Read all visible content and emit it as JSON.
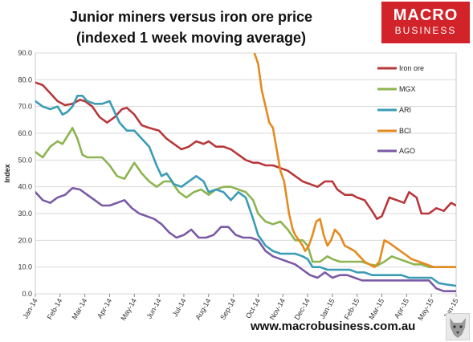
{
  "header": {
    "title_line1": "Junior miners versus iron ore price",
    "title_line2": "(indexed 1 week moving average)"
  },
  "branding": {
    "logo_line1": "MACRO",
    "logo_line2": "BUSINESS",
    "logo_color": "#d2232a",
    "url": "www.macrobusiness.com.au"
  },
  "chart_data": {
    "type": "line",
    "title": "Junior miners versus iron ore price (indexed 1 week moving average)",
    "ylabel": "Index",
    "xlabel": "",
    "ylim": [
      0,
      90
    ],
    "yticks": [
      "0.0",
      "10.0",
      "20.0",
      "30.0",
      "40.0",
      "50.0",
      "60.0",
      "70.0",
      "80.0",
      "90.0"
    ],
    "x_labels": [
      "Jan-14",
      "Feb-14",
      "Mar-14",
      "Apr-14",
      "May-14",
      "Jun-14",
      "Jul-14",
      "Aug-14",
      "Sep-14",
      "Oct-14",
      "Nov-14",
      "Dec-14",
      "Jan-15",
      "Feb-15",
      "Mar-15",
      "Apr-15",
      "May-15",
      "Jun-15"
    ],
    "xlim": [
      0,
      17
    ],
    "grid": "horizontal",
    "legend_position": "right",
    "series": [
      {
        "name": "Iron ore",
        "color": "#b8373a",
        "points": [
          [
            0,
            79
          ],
          [
            0.3,
            78
          ],
          [
            0.6,
            75
          ],
          [
            0.9,
            72
          ],
          [
            1.2,
            70.5
          ],
          [
            1.5,
            71
          ],
          [
            1.8,
            72.5
          ],
          [
            2,
            72
          ],
          [
            2.3,
            70
          ],
          [
            2.6,
            66
          ],
          [
            2.9,
            64
          ],
          [
            3.2,
            66
          ],
          [
            3.5,
            69
          ],
          [
            3.7,
            69.5
          ],
          [
            4,
            67
          ],
          [
            4.3,
            63
          ],
          [
            4.6,
            62
          ],
          [
            5,
            61
          ],
          [
            5.3,
            58
          ],
          [
            5.6,
            56
          ],
          [
            5.9,
            54
          ],
          [
            6.2,
            55
          ],
          [
            6.5,
            57
          ],
          [
            6.8,
            56
          ],
          [
            7,
            57
          ],
          [
            7.3,
            55
          ],
          [
            7.6,
            55
          ],
          [
            7.9,
            54
          ],
          [
            8.2,
            52
          ],
          [
            8.5,
            50
          ],
          [
            8.8,
            49
          ],
          [
            9,
            49
          ],
          [
            9.3,
            48
          ],
          [
            9.6,
            48
          ],
          [
            9.9,
            47
          ],
          [
            10.2,
            46
          ],
          [
            10.5,
            44
          ],
          [
            10.8,
            42
          ],
          [
            11.1,
            41
          ],
          [
            11.4,
            40
          ],
          [
            11.7,
            42
          ],
          [
            12,
            42
          ],
          [
            12.2,
            39
          ],
          [
            12.5,
            37
          ],
          [
            12.8,
            37
          ],
          [
            13,
            36
          ],
          [
            13.3,
            35
          ],
          [
            13.6,
            31
          ],
          [
            13.8,
            28
          ],
          [
            14,
            29
          ],
          [
            14.3,
            36
          ],
          [
            14.6,
            35
          ],
          [
            14.9,
            34
          ],
          [
            15.1,
            38
          ],
          [
            15.4,
            36
          ],
          [
            15.6,
            30
          ],
          [
            15.9,
            30
          ],
          [
            16.2,
            32
          ],
          [
            16.5,
            31
          ],
          [
            16.8,
            34
          ],
          [
            17,
            33
          ]
        ]
      },
      {
        "name": "MGX",
        "color": "#8cb450",
        "points": [
          [
            0,
            53
          ],
          [
            0.3,
            51
          ],
          [
            0.6,
            55
          ],
          [
            0.9,
            57
          ],
          [
            1.1,
            56
          ],
          [
            1.3,
            59
          ],
          [
            1.5,
            62
          ],
          [
            1.7,
            58
          ],
          [
            1.9,
            52
          ],
          [
            2.1,
            51
          ],
          [
            2.4,
            51
          ],
          [
            2.7,
            51
          ],
          [
            3,
            48
          ],
          [
            3.3,
            44
          ],
          [
            3.6,
            43
          ],
          [
            3.8,
            46
          ],
          [
            4,
            49
          ],
          [
            4.3,
            45
          ],
          [
            4.6,
            42
          ],
          [
            4.9,
            40
          ],
          [
            5.2,
            42
          ],
          [
            5.5,
            42
          ],
          [
            5.8,
            38
          ],
          [
            6.1,
            36
          ],
          [
            6.4,
            38
          ],
          [
            6.7,
            39
          ],
          [
            7,
            37
          ],
          [
            7.3,
            39
          ],
          [
            7.6,
            40
          ],
          [
            7.9,
            40
          ],
          [
            8.2,
            39
          ],
          [
            8.5,
            38
          ],
          [
            8.8,
            35
          ],
          [
            9,
            30
          ],
          [
            9.3,
            27
          ],
          [
            9.6,
            26
          ],
          [
            9.9,
            27
          ],
          [
            10.2,
            24
          ],
          [
            10.5,
            20
          ],
          [
            10.8,
            20
          ],
          [
            11,
            18
          ],
          [
            11.2,
            12
          ],
          [
            11.5,
            12
          ],
          [
            11.8,
            14
          ],
          [
            12,
            13
          ],
          [
            12.3,
            12
          ],
          [
            12.6,
            12
          ],
          [
            12.9,
            12
          ],
          [
            13.2,
            12
          ],
          [
            13.5,
            11
          ],
          [
            13.8,
            10.5
          ],
          [
            14.1,
            12
          ],
          [
            14.4,
            14
          ],
          [
            14.7,
            13
          ],
          [
            15,
            12
          ],
          [
            15.3,
            11
          ],
          [
            15.6,
            11
          ],
          [
            15.9,
            10
          ],
          [
            16.2,
            10
          ],
          [
            16.5,
            10
          ],
          [
            17,
            10
          ]
        ]
      },
      {
        "name": "ARI",
        "color": "#3a9cb5",
        "points": [
          [
            0,
            72
          ],
          [
            0.3,
            70
          ],
          [
            0.6,
            69
          ],
          [
            0.9,
            70
          ],
          [
            1.1,
            67
          ],
          [
            1.3,
            68
          ],
          [
            1.5,
            70
          ],
          [
            1.7,
            74
          ],
          [
            1.9,
            74
          ],
          [
            2.1,
            72
          ],
          [
            2.4,
            71
          ],
          [
            2.7,
            71
          ],
          [
            3,
            72
          ],
          [
            3.2,
            68
          ],
          [
            3.4,
            64
          ],
          [
            3.7,
            61
          ],
          [
            4,
            61
          ],
          [
            4.3,
            58
          ],
          [
            4.6,
            55
          ],
          [
            4.9,
            48
          ],
          [
            5.1,
            44
          ],
          [
            5.3,
            45
          ],
          [
            5.6,
            41
          ],
          [
            5.9,
            40
          ],
          [
            6.2,
            42
          ],
          [
            6.5,
            44
          ],
          [
            6.8,
            42
          ],
          [
            7,
            38
          ],
          [
            7.3,
            39
          ],
          [
            7.6,
            38
          ],
          [
            7.9,
            35
          ],
          [
            8.2,
            38
          ],
          [
            8.5,
            36
          ],
          [
            8.8,
            28
          ],
          [
            9,
            22
          ],
          [
            9.3,
            18
          ],
          [
            9.6,
            16
          ],
          [
            9.9,
            15
          ],
          [
            10.2,
            15
          ],
          [
            10.5,
            15
          ],
          [
            10.8,
            14
          ],
          [
            11,
            13
          ],
          [
            11.2,
            10
          ],
          [
            11.5,
            10
          ],
          [
            11.8,
            9
          ],
          [
            12.1,
            9
          ],
          [
            12.4,
            9
          ],
          [
            12.7,
            9
          ],
          [
            13,
            8
          ],
          [
            13.3,
            8
          ],
          [
            13.6,
            7
          ],
          [
            13.9,
            7
          ],
          [
            14.2,
            7
          ],
          [
            14.5,
            7
          ],
          [
            14.8,
            7
          ],
          [
            15.1,
            6
          ],
          [
            15.4,
            6
          ],
          [
            15.7,
            6
          ],
          [
            16,
            6
          ],
          [
            16.3,
            4
          ],
          [
            16.6,
            3.5
          ],
          [
            17,
            3
          ]
        ]
      },
      {
        "name": "BCI",
        "color": "#e58a1f",
        "points": [
          [
            8.85,
            90
          ],
          [
            9,
            86
          ],
          [
            9.15,
            76
          ],
          [
            9.3,
            70
          ],
          [
            9.45,
            64
          ],
          [
            9.6,
            62
          ],
          [
            9.75,
            54
          ],
          [
            9.9,
            46
          ],
          [
            10.05,
            42
          ],
          [
            10.15,
            36
          ],
          [
            10.25,
            30
          ],
          [
            10.4,
            24
          ],
          [
            10.5,
            22
          ],
          [
            10.65,
            20
          ],
          [
            10.8,
            18
          ],
          [
            10.9,
            16
          ],
          [
            11.05,
            18
          ],
          [
            11.2,
            22
          ],
          [
            11.35,
            27
          ],
          [
            11.5,
            28
          ],
          [
            11.65,
            22
          ],
          [
            11.8,
            18
          ],
          [
            11.95,
            20
          ],
          [
            12.1,
            24
          ],
          [
            12.3,
            22
          ],
          [
            12.5,
            18
          ],
          [
            12.7,
            17
          ],
          [
            12.9,
            16
          ],
          [
            13.1,
            14
          ],
          [
            13.3,
            12
          ],
          [
            13.5,
            11
          ],
          [
            13.7,
            10
          ],
          [
            13.9,
            12
          ],
          [
            14.1,
            20
          ],
          [
            14.3,
            19
          ],
          [
            14.6,
            17
          ],
          [
            14.9,
            15
          ],
          [
            15.2,
            13
          ],
          [
            15.5,
            12
          ],
          [
            15.8,
            11
          ],
          [
            16.1,
            10
          ],
          [
            16.5,
            10
          ],
          [
            17,
            10
          ]
        ]
      },
      {
        "name": "AGO",
        "color": "#7b5aa6",
        "points": [
          [
            0,
            38
          ],
          [
            0.3,
            35
          ],
          [
            0.6,
            34
          ],
          [
            0.9,
            36
          ],
          [
            1.2,
            37
          ],
          [
            1.5,
            39.5
          ],
          [
            1.8,
            39
          ],
          [
            2.1,
            37
          ],
          [
            2.4,
            35
          ],
          [
            2.7,
            33
          ],
          [
            3,
            33
          ],
          [
            3.3,
            34
          ],
          [
            3.6,
            35
          ],
          [
            3.9,
            32
          ],
          [
            4.2,
            30
          ],
          [
            4.5,
            29
          ],
          [
            4.8,
            28
          ],
          [
            5.1,
            26
          ],
          [
            5.4,
            23
          ],
          [
            5.7,
            21
          ],
          [
            6,
            22
          ],
          [
            6.3,
            24
          ],
          [
            6.6,
            21
          ],
          [
            6.9,
            21
          ],
          [
            7.2,
            22
          ],
          [
            7.5,
            25
          ],
          [
            7.8,
            25
          ],
          [
            8.1,
            22
          ],
          [
            8.4,
            21
          ],
          [
            8.7,
            21
          ],
          [
            9,
            20
          ],
          [
            9.3,
            16
          ],
          [
            9.6,
            14
          ],
          [
            9.9,
            13
          ],
          [
            10.2,
            12
          ],
          [
            10.5,
            11
          ],
          [
            10.8,
            9
          ],
          [
            11.1,
            7
          ],
          [
            11.4,
            6
          ],
          [
            11.7,
            8
          ],
          [
            12,
            6
          ],
          [
            12.3,
            7
          ],
          [
            12.6,
            7
          ],
          [
            12.9,
            6
          ],
          [
            13.2,
            5
          ],
          [
            13.5,
            5
          ],
          [
            13.8,
            5
          ],
          [
            14.1,
            5
          ],
          [
            14.4,
            5
          ],
          [
            14.7,
            5
          ],
          [
            15,
            5
          ],
          [
            15.3,
            5
          ],
          [
            15.6,
            5
          ],
          [
            15.9,
            5
          ],
          [
            16.2,
            2
          ],
          [
            16.5,
            1
          ],
          [
            16.8,
            1
          ],
          [
            17,
            1
          ]
        ]
      }
    ]
  }
}
